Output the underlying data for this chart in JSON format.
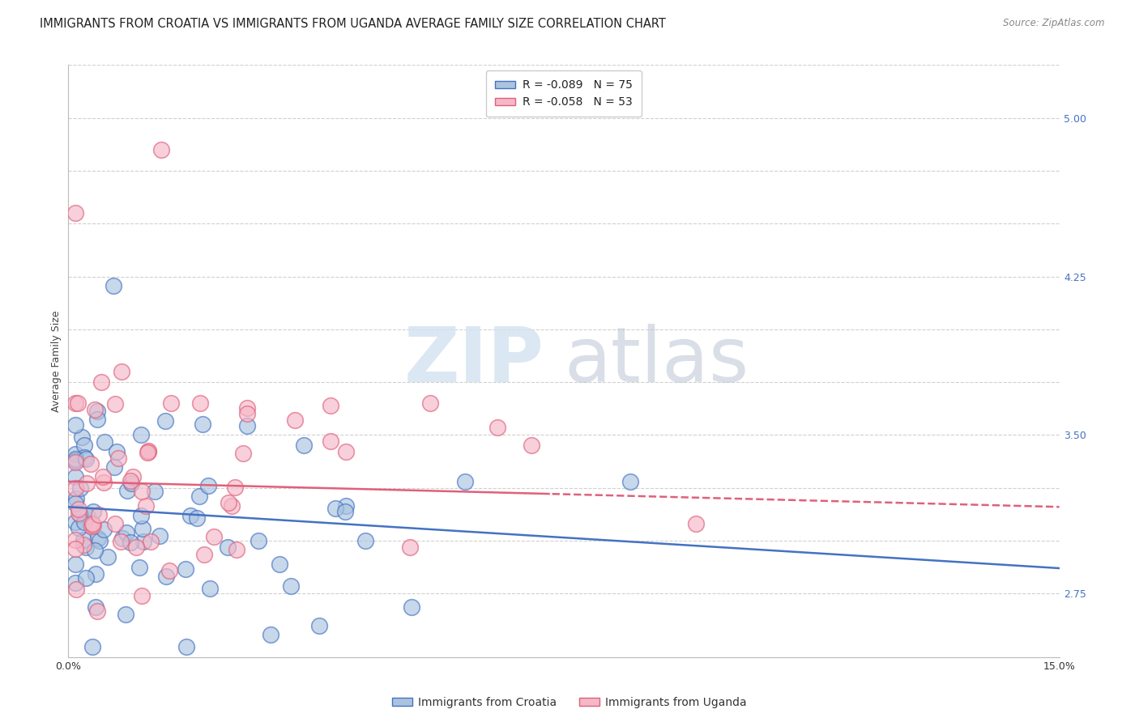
{
  "title": "IMMIGRANTS FROM CROATIA VS IMMIGRANTS FROM UGANDA AVERAGE FAMILY SIZE CORRELATION CHART",
  "source": "Source: ZipAtlas.com",
  "ylabel": "Average Family Size",
  "xlim": [
    0.0,
    0.15
  ],
  "ylim": [
    2.45,
    5.25
  ],
  "croatia_fill_color": "#aac4e0",
  "croatia_edge_color": "#4472C4",
  "uganda_fill_color": "#f5b8c8",
  "uganda_edge_color": "#E0607A",
  "croatia_line_color": "#4472C4",
  "uganda_line_color": "#E0607A",
  "legend_croatia_label": "R = -0.089   N = 75",
  "legend_uganda_label": "R = -0.058   N = 53",
  "watermark_zip": "ZIP",
  "watermark_atlas": "atlas",
  "legend_label_croatia": "Immigrants from Croatia",
  "legend_label_uganda": "Immigrants from Uganda",
  "background_color": "#ffffff",
  "grid_color": "#d0d0d0",
  "title_fontsize": 10.5,
  "axis_label_fontsize": 9,
  "tick_fontsize": 9,
  "legend_fontsize": 10,
  "right_yticks": [
    2.75,
    3.0,
    3.25,
    3.5,
    3.75,
    4.0,
    4.25,
    4.5,
    4.75,
    5.0
  ],
  "right_ytick_labels": [
    "2.75",
    "",
    "",
    "3.50",
    "",
    "",
    "4.25",
    "",
    "",
    "5.00"
  ]
}
